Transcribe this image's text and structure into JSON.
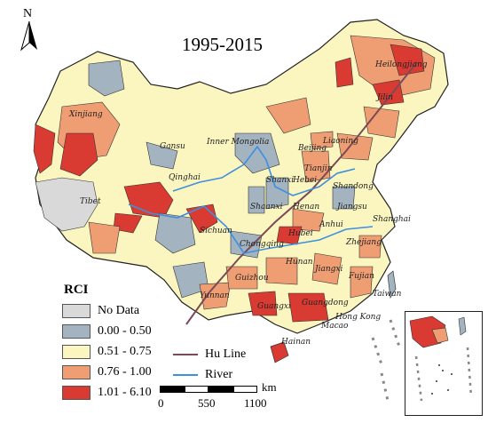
{
  "title": "1995-2015",
  "north_arrow": {
    "letter": "N",
    "icon": "north-arrow-icon"
  },
  "legend": {
    "title": "RCI",
    "classes": [
      {
        "label": "No Data",
        "color": "#d9d9d9"
      },
      {
        "label": "0.00 - 0.50",
        "color": "#a3b3c0"
      },
      {
        "label": "0.51 - 0.75",
        "color": "#fbf6bf"
      },
      {
        "label": "0.76 - 1.00",
        "color": "#ef9d72"
      },
      {
        "label": "1.01 - 6.10",
        "color": "#d93a32"
      }
    ],
    "lines": [
      {
        "label": "Hu Line",
        "color": "#7a4b55"
      },
      {
        "label": "River",
        "color": "#3d8fe0"
      }
    ]
  },
  "scale_bar": {
    "unit": "km",
    "ticks": [
      "0",
      "550",
      "1100"
    ]
  },
  "places": [
    "Heilongjiang",
    "Xinjiang",
    "Jilin",
    "Gansu",
    "Inner Mongolia",
    "Beijing",
    "Liaoning",
    "Qinghai",
    "Tianjin",
    "Shandong",
    "Shanxi",
    "Hebei",
    "Tibet",
    "Shaanxi",
    "Henan",
    "Jiangsu",
    "Shanghai",
    "Anhui",
    "Sichuan",
    "Hubei",
    "Zhejiang",
    "Chongqing",
    "Hunan",
    "Jiangxi",
    "Fujian",
    "Guizhou",
    "Taiwan",
    "Yunnan",
    "Guangxi",
    "Guangdong",
    "Hong Kong",
    "Macao",
    "Hainan"
  ]
}
